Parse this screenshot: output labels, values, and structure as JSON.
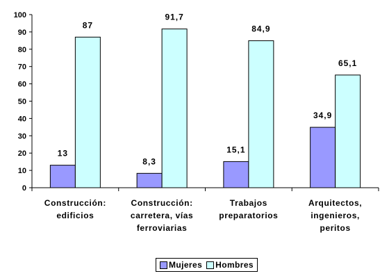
{
  "chart_data": {
    "type": "bar",
    "categories": [
      [
        "Construcción:",
        "edificios"
      ],
      [
        "Construcción:",
        "carretera, vías",
        "ferroviarias"
      ],
      [
        "Trabajos",
        "preparatorios"
      ],
      [
        "Arquitectos,",
        "ingenieros,",
        "peritos"
      ]
    ],
    "series": [
      {
        "name": "Mujeres",
        "values": [
          13,
          8.3,
          15.1,
          34.9
        ],
        "labels": [
          "13",
          "8,3",
          "15,1",
          "34,9"
        ],
        "color": "#9999ff"
      },
      {
        "name": "Hombres",
        "values": [
          87,
          91.7,
          84.9,
          65.1
        ],
        "labels": [
          "87",
          "91,7",
          "84,9",
          "65,1"
        ],
        "color": "#ccffff"
      }
    ],
    "ylim": [
      0,
      100
    ],
    "yticks": [
      0,
      10,
      20,
      30,
      40,
      50,
      60,
      70,
      80,
      90,
      100
    ],
    "grid": false,
    "legend_position": "bottom",
    "title": "",
    "xlabel": "",
    "ylabel": ""
  }
}
